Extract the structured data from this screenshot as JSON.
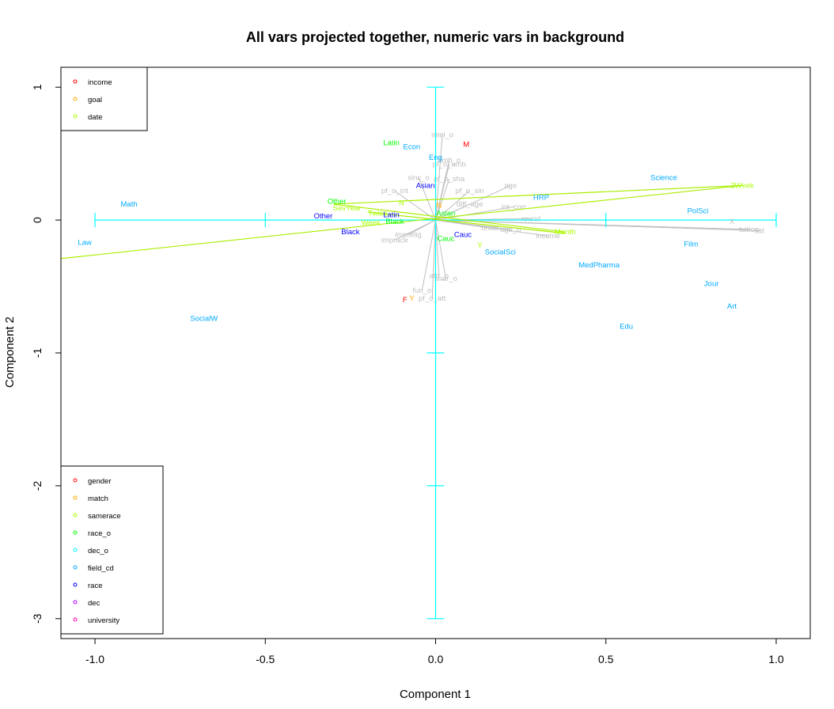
{
  "chart_data": {
    "type": "scatter",
    "title": "All vars projected together, numeric vars in background",
    "xlabel": "Component 1",
    "ylabel": "Component 2",
    "xlim": [
      -1.1,
      1.1
    ],
    "ylim": [
      -3.15,
      1.15
    ],
    "x_ticks": [
      -1.0,
      -0.5,
      0.0,
      0.5,
      1.0
    ],
    "x_tick_labels": [
      "-1.0",
      "-0.5",
      "0.0",
      "0.5",
      "1.0"
    ],
    "y_ticks": [
      -3,
      -2,
      -1,
      0,
      1
    ],
    "y_tick_labels": [
      "-3",
      "-2",
      "-1",
      "0",
      "1"
    ],
    "colors": {
      "numeric": "#bebebe",
      "income": "#ff0000",
      "goal": "#ffaa00",
      "date": "#aaff00",
      "gender": "#ff0000",
      "match": "#ffaa00",
      "samerace": "#aaff00",
      "race_o": "#00ff00",
      "dec_o": "#00ffff",
      "field_cd": "#00aaff",
      "race": "#0000ff",
      "dec": "#aa00ff",
      "university": "#ff00aa",
      "cyan_axes": "#00ffff",
      "date_lines": "#aaee00"
    },
    "legend_top": [
      {
        "label": "income",
        "color": "#ff0000"
      },
      {
        "label": "goal",
        "color": "#ffaa00"
      },
      {
        "label": "date",
        "color": "#aaff00"
      }
    ],
    "legend_bottom": [
      {
        "label": "gender",
        "color": "#ff0000"
      },
      {
        "label": "match",
        "color": "#ffaa00"
      },
      {
        "label": "samerace",
        "color": "#aaff00"
      },
      {
        "label": "race_o",
        "color": "#00ff00"
      },
      {
        "label": "dec_o",
        "color": "#00ffff"
      },
      {
        "label": "field_cd",
        "color": "#00aaff"
      },
      {
        "label": "race",
        "color": "#0000ff"
      },
      {
        "label": "dec",
        "color": "#aa00ff"
      },
      {
        "label": "university",
        "color": "#ff00aa"
      }
    ],
    "legend_placement": [
      "top-left",
      "bottom-left"
    ],
    "cyan_axis_lines": {
      "horizontal": {
        "x": [
          -1.0,
          1.0
        ],
        "y": 0,
        "ticks": [
          -1.0,
          -0.5,
          0.5,
          1.0
        ]
      },
      "vertical": {
        "x": 0,
        "y": [
          -3.0,
          1.0
        ],
        "ticks": [
          -3,
          -2,
          -1,
          1
        ]
      }
    },
    "numeric_vectors": [
      {
        "label": "intel_o",
        "x": 0.02,
        "y": 0.64
      },
      {
        "label": "amb_o",
        "x": 0.04,
        "y": 0.45
      },
      {
        "label": "pf_o_amb",
        "x": 0.04,
        "y": 0.42
      },
      {
        "label": "sinc_o",
        "x": -0.05,
        "y": 0.32
      },
      {
        "label": "pf_o_sha",
        "x": 0.04,
        "y": 0.31
      },
      {
        "label": "pf_o_int",
        "x": -0.12,
        "y": 0.22
      },
      {
        "label": "pf_o_sin",
        "x": 0.1,
        "y": 0.22
      },
      {
        "label": "age",
        "x": 0.22,
        "y": 0.26
      },
      {
        "label": "diff_age",
        "x": 0.1,
        "y": 0.12
      },
      {
        "label": "int_corr",
        "x": 0.23,
        "y": 0.1
      },
      {
        "label": "round",
        "x": 0.28,
        "y": 0.01
      },
      {
        "label": "order",
        "x": 0.16,
        "y": -0.06
      },
      {
        "label": "age_o",
        "x": 0.22,
        "y": -0.07
      },
      {
        "label": "income",
        "x": 0.33,
        "y": -0.12
      },
      {
        "label": "tuition",
        "x": 0.92,
        "y": -0.07
      },
      {
        "label": "sat",
        "x": 0.95,
        "y": -0.08
      },
      {
        "label": "imprelig",
        "x": -0.08,
        "y": -0.11
      },
      {
        "label": "imprace",
        "x": -0.12,
        "y": -0.15
      },
      {
        "label": "attr_o",
        "x": 0.01,
        "y": -0.42
      },
      {
        "label": "shar_o",
        "x": 0.03,
        "y": -0.44
      },
      {
        "label": "fun_o",
        "x": -0.04,
        "y": -0.53
      },
      {
        "label": "pf_o_att",
        "x": -0.01,
        "y": -0.59
      }
    ],
    "categorical_points": [
      {
        "label": "M",
        "x": 0.09,
        "y": 0.57,
        "group": "gender"
      },
      {
        "label": "F",
        "x": -0.09,
        "y": -0.6,
        "group": "gender"
      },
      {
        "label": "N",
        "x": 0.01,
        "y": 0.11,
        "group": "match"
      },
      {
        "label": "Y",
        "x": -0.07,
        "y": -0.59,
        "group": "match"
      },
      {
        "label": "N",
        "x": -0.1,
        "y": 0.13,
        "group": "samerace"
      },
      {
        "label": "Y",
        "x": 0.13,
        "y": -0.19,
        "group": "samerace"
      },
      {
        "label": "2Week",
        "x": 0.9,
        "y": 0.26,
        "group": "date"
      },
      {
        "label": "SevYear",
        "x": -0.26,
        "y": 0.09,
        "group": "date"
      },
      {
        "label": "Twice",
        "x": -0.17,
        "y": 0.05,
        "group": "date"
      },
      {
        "label": "Week",
        "x": -0.19,
        "y": -0.02,
        "group": "date"
      },
      {
        "label": "Month",
        "x": 0.38,
        "y": -0.09,
        "group": "date"
      },
      {
        "label": "Latin",
        "x": -0.13,
        "y": 0.58,
        "group": "race_o"
      },
      {
        "label": "Other",
        "x": -0.29,
        "y": 0.14,
        "group": "race_o"
      },
      {
        "label": "Black",
        "x": -0.12,
        "y": -0.01,
        "group": "race_o"
      },
      {
        "label": "Asian",
        "x": 0.03,
        "y": 0.05,
        "group": "race_o"
      },
      {
        "label": "Cauc",
        "x": 0.03,
        "y": -0.14,
        "group": "race_o"
      },
      {
        "label": "Eng",
        "x": 0.0,
        "y": 0.47,
        "group": "field_cd"
      },
      {
        "label": "Econ",
        "x": -0.07,
        "y": 0.55,
        "group": "field_cd"
      },
      {
        "label": "Science",
        "x": 0.67,
        "y": 0.32,
        "group": "field_cd"
      },
      {
        "label": "HRP",
        "x": 0.31,
        "y": 0.17,
        "group": "field_cd"
      },
      {
        "label": "PolSci",
        "x": 0.77,
        "y": 0.07,
        "group": "field_cd"
      },
      {
        "label": "Film",
        "x": 0.75,
        "y": -0.18,
        "group": "field_cd"
      },
      {
        "label": "MedPharma",
        "x": 0.48,
        "y": -0.34,
        "group": "field_cd"
      },
      {
        "label": "SocialSci",
        "x": 0.19,
        "y": -0.24,
        "group": "field_cd"
      },
      {
        "label": "Jour",
        "x": 0.81,
        "y": -0.48,
        "group": "field_cd"
      },
      {
        "label": "Art",
        "x": 0.87,
        "y": -0.65,
        "group": "field_cd"
      },
      {
        "label": "Edu",
        "x": 0.56,
        "y": -0.8,
        "group": "field_cd"
      },
      {
        "label": "Math",
        "x": -0.9,
        "y": 0.12,
        "group": "field_cd"
      },
      {
        "label": "Law",
        "x": -1.03,
        "y": -0.17,
        "group": "field_cd"
      },
      {
        "label": "SocialW",
        "x": -0.68,
        "y": -0.74,
        "group": "field_cd"
      },
      {
        "label": "Asian",
        "x": -0.03,
        "y": 0.26,
        "group": "race"
      },
      {
        "label": "Other",
        "x": -0.33,
        "y": 0.03,
        "group": "race"
      },
      {
        "label": "Black",
        "x": -0.25,
        "y": -0.09,
        "group": "race"
      },
      {
        "label": "Latin",
        "x": -0.13,
        "y": 0.04,
        "group": "race"
      },
      {
        "label": "Cauc",
        "x": 0.08,
        "y": -0.11,
        "group": "race"
      },
      {
        "label": "X",
        "x": 0.87,
        "y": -0.01,
        "group": "numeric"
      }
    ],
    "date_lines": [
      {
        "from": [
          -1.1,
          -0.29
        ],
        "to": [
          0.9,
          0.26
        ]
      },
      {
        "from": [
          -0.3,
          0.12
        ],
        "to": [
          0.9,
          0.26
        ]
      },
      {
        "from": [
          -0.3,
          0.12
        ],
        "to": [
          0.38,
          -0.09
        ]
      },
      {
        "from": [
          -0.2,
          0.06
        ],
        "to": [
          0.38,
          -0.1
        ]
      }
    ]
  }
}
